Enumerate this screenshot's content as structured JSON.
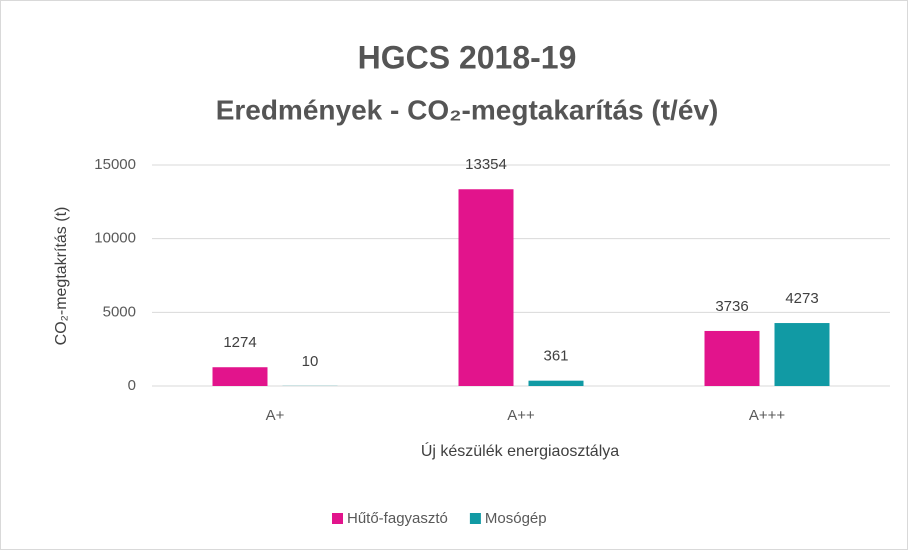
{
  "chart_data": {
    "type": "bar",
    "title": "HGCS 2018-19",
    "subtitle": "Eredmények - CO₂-megtakarítás (t/év)",
    "y_label": "CO₂-megtakrítás (t)",
    "x_label": "Új készülék energiaosztálya",
    "categories": [
      "A+",
      "A++",
      "A+++"
    ],
    "series": [
      {
        "name": "Hűtő-fagyasztó",
        "color": "#e2148c",
        "values": [
          1274,
          13354,
          3736
        ]
      },
      {
        "name": "Mosógép",
        "color": "#119aa4",
        "values": [
          10,
          361,
          4273
        ]
      }
    ],
    "ylim": [
      0,
      15000
    ],
    "yticks": [
      0,
      5000,
      10000,
      15000
    ],
    "grid": true,
    "legend": "bottom"
  }
}
